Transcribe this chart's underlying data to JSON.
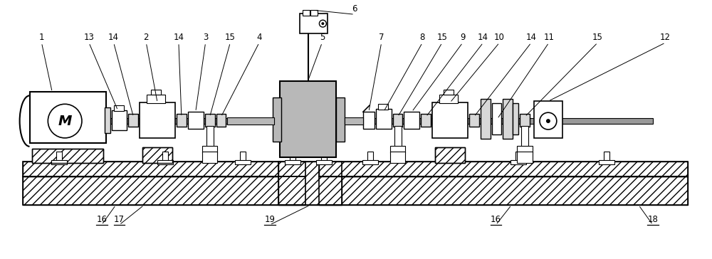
{
  "bg_color": "#ffffff",
  "line_color": "#000000",
  "gray_fill": "#b8b8b8",
  "light_gray": "#d8d8d8",
  "shaft_gray": "#999999",
  "figsize": [
    10.0,
    3.64
  ],
  "dpi": 100
}
